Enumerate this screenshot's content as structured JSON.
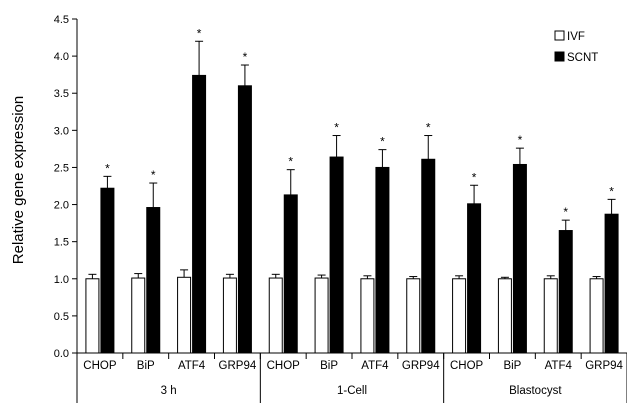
{
  "chart_data": {
    "type": "bar",
    "title": "",
    "xlabel": "",
    "ylabel": "Relative gene expression",
    "ylim": [
      0,
      4.5
    ],
    "yticks": [
      "0.0",
      "0.5",
      "1.0",
      "1.5",
      "2.0",
      "2.5",
      "3.0",
      "3.5",
      "4.0",
      "4.5"
    ],
    "groups": [
      "3 h",
      "1-Cell",
      "Blastocyst"
    ],
    "categories": [
      "CHOP",
      "BiP",
      "ATF4",
      "GRP94",
      "CHOP",
      "BiP",
      "ATF4",
      "GRP94",
      "CHOP",
      "BiP",
      "ATF4",
      "GRP94"
    ],
    "series": [
      {
        "name": "IVF",
        "color": "#ffffff",
        "values": [
          1.0,
          1.01,
          1.02,
          1.01,
          1.01,
          1.01,
          1.0,
          1.0,
          1.0,
          1.0,
          1.0,
          1.0
        ],
        "errors": [
          0.06,
          0.06,
          0.1,
          0.05,
          0.05,
          0.04,
          0.04,
          0.03,
          0.04,
          0.02,
          0.04,
          0.03
        ]
      },
      {
        "name": "SCNT",
        "color": "#000000",
        "values": [
          2.22,
          1.96,
          3.74,
          3.6,
          2.13,
          2.64,
          2.5,
          2.61,
          2.01,
          2.54,
          1.65,
          1.87
        ],
        "errors": [
          0.16,
          0.33,
          0.46,
          0.28,
          0.34,
          0.29,
          0.24,
          0.32,
          0.25,
          0.22,
          0.14,
          0.2
        ]
      }
    ],
    "significance": [
      "*",
      "*",
      "*",
      "*",
      "*",
      "*",
      "*",
      "*",
      "*",
      "*",
      "*",
      "*"
    ],
    "legend": [
      "IVF",
      "SCNT"
    ],
    "legend_position": "top-right",
    "grid": false
  }
}
